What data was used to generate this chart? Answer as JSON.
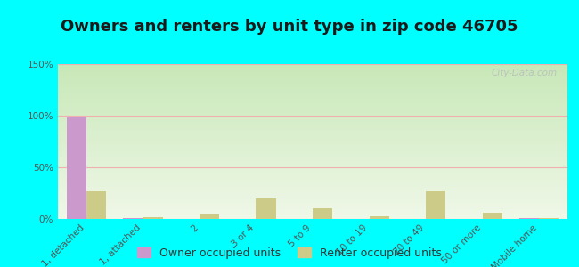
{
  "title": "Owners and renters by unit type in zip code 46705",
  "categories": [
    "1, detached",
    "1, attached",
    "2",
    "3 or 4",
    "5 to 9",
    "10 to 19",
    "20 to 49",
    "50 or more",
    "Mobile home"
  ],
  "owner_values": [
    98,
    1,
    0,
    0,
    0,
    0,
    0,
    0,
    1
  ],
  "renter_values": [
    27,
    2,
    5,
    20,
    10,
    3,
    27,
    6,
    1
  ],
  "owner_color": "#cc99cc",
  "renter_color": "#cccc88",
  "ylim": [
    0,
    150
  ],
  "yticks": [
    0,
    50,
    100,
    150
  ],
  "ytick_labels": [
    "0%",
    "50%",
    "100%",
    "150%"
  ],
  "background_color": "#00ffff",
  "grad_top": "#c8e8b8",
  "grad_bottom": "#f0f8e8",
  "grid_color": "#f0b0b0",
  "title_fontsize": 13,
  "tick_fontsize": 7.5,
  "legend_fontsize": 9,
  "watermark": "City-Data.com",
  "bar_width": 0.35
}
